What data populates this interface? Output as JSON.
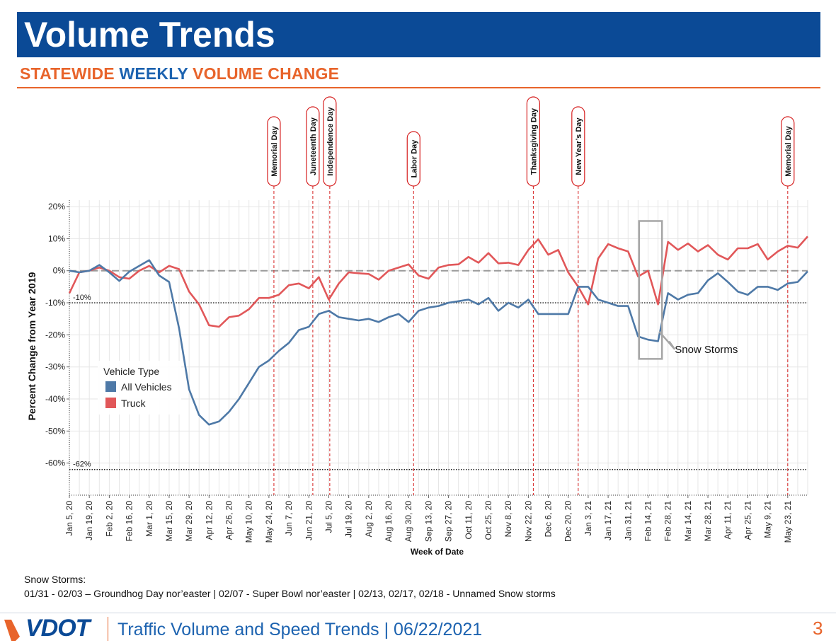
{
  "header": {
    "title": "Volume Trends",
    "subtitle_part1": "STATEWIDE ",
    "subtitle_part2": "WEEKLY",
    "subtitle_part3": " VOLUME CHANGE"
  },
  "colors": {
    "header_blue": "#0b4a96",
    "accent_orange": "#e8642b",
    "all_vehicles": "#4e79a7",
    "truck": "#e15759"
  },
  "chart_data": {
    "type": "line",
    "xlabel": "Week of Date",
    "ylabel": "Percent Change from Year 2019",
    "ylim": [
      -70,
      22
    ],
    "yticks": [
      20,
      10,
      0,
      -10,
      -20,
      -30,
      -40,
      -50,
      -60
    ],
    "ytick_labels": [
      "20%",
      "10%",
      "0%",
      "-10%",
      "-20%",
      "-30%",
      "-40%",
      "-50%",
      "-60%"
    ],
    "x_start": "Jan 5, 20",
    "x_tick_labels": [
      "Jan 5, 20",
      "Jan 19, 20",
      "Feb 2, 20",
      "Feb 16, 20",
      "Mar 1, 20",
      "Mar 15, 20",
      "Mar 29, 20",
      "Apr 12, 20",
      "Apr 26, 20",
      "May 10, 20",
      "May 24, 20",
      "Jun 7, 20",
      "Jun 21, 20",
      "Jul 5, 20",
      "Jul 19, 20",
      "Aug 2, 20",
      "Aug 16, 20",
      "Aug 30, 20",
      "Sep 13, 20",
      "Sep 27, 20",
      "Oct 11, 20",
      "Oct 25, 20",
      "Nov 8, 20",
      "Nov 22, 20",
      "Dec 6, 20",
      "Dec 20, 20",
      "Jan 3, 21",
      "Jan 17, 21",
      "Jan 31, 21",
      "Feb 14, 21",
      "Feb 28, 21",
      "Mar 14, 21",
      "Mar 28, 21",
      "Apr 11, 21",
      "Apr 25, 21",
      "May 9, 21",
      "May 23, 21"
    ],
    "grid": true,
    "legend": {
      "title": "Vehicle Type",
      "placement": "lower-left"
    },
    "series": [
      {
        "name": "All Vehicles",
        "color": "#4e79a7",
        "values": [
          0,
          -0.5,
          0,
          1.8,
          -0.5,
          -3.2,
          -0.3,
          1.5,
          3.3,
          -1.5,
          -3.5,
          -18,
          -37,
          -45,
          -48,
          -47,
          -44,
          -40,
          -35,
          -30,
          -28,
          -25,
          -22.5,
          -18.5,
          -17.5,
          -13.5,
          -12.5,
          -14.5,
          -15,
          -15.5,
          -15,
          -16,
          -14.5,
          -13.5,
          -16,
          -12.5,
          -11.5,
          -11,
          -10,
          -9.5,
          -9,
          -10.5,
          -8.5,
          -12.5,
          -10,
          -11.5,
          -9,
          -13.5,
          -13.5,
          -13.5,
          -13.5,
          -5,
          -5,
          -9,
          -10,
          -11,
          -11,
          -20.5,
          -21.5,
          -22,
          -7,
          -9,
          -7.5,
          -7,
          -3,
          -0.8,
          -3.5,
          -6.5,
          -7.5,
          -5,
          -5,
          -6,
          -4,
          -3.5,
          -0.2
        ]
      },
      {
        "name": "Truck",
        "color": "#e15759",
        "values": [
          -7,
          -0.5,
          0,
          1,
          0,
          -2,
          -2.5,
          0,
          1.5,
          -0.5,
          1.5,
          0.5,
          -6.5,
          -10.5,
          -17,
          -17.5,
          -14.5,
          -14,
          -12,
          -8.5,
          -8.5,
          -7.5,
          -4.5,
          -4,
          -5.5,
          -2,
          -9,
          -4,
          -0.5,
          -0.8,
          -1,
          -2.8,
          0,
          1,
          2,
          -1.5,
          -2.5,
          1,
          1.8,
          2,
          4.3,
          2.5,
          5.5,
          2.3,
          2.5,
          1.8,
          6.5,
          9.8,
          5,
          6.5,
          -0.5,
          -5,
          -10.5,
          3.8,
          8.3,
          7,
          6,
          -1.8,
          0,
          -10.5,
          9,
          6.5,
          8.5,
          6,
          8,
          5,
          3.5,
          7,
          7,
          8.3,
          3.5,
          6,
          7.8,
          7.2,
          10.7
        ]
      }
    ],
    "reference_lines": [
      {
        "value": 0,
        "style": "dashed",
        "label": ""
      },
      {
        "value": -10,
        "style": "dotted",
        "label": "-10%"
      },
      {
        "value": -62,
        "style": "dotted",
        "label": "-62%"
      }
    ],
    "holidays": [
      {
        "label": "Memorial Day",
        "week": 20.5
      },
      {
        "label": "Juneteenth Day",
        "week": 24.4
      },
      {
        "label": "Independence Day",
        "week": 26.1
      },
      {
        "label": "Labor Day",
        "week": 34.5
      },
      {
        "label": "Thanksgiving Day",
        "week": 46.5
      },
      {
        "label": "New Year’s Day",
        "week": 51.0
      },
      {
        "label": "Memorial Day",
        "week": 72.0
      }
    ],
    "annotation": {
      "label": "Snow Storms",
      "week_range": [
        57.1,
        59.4
      ],
      "value_range": [
        -27.5,
        15.5
      ]
    }
  },
  "notes": {
    "heading": "Snow Storms:",
    "body": "01/31 - 02/03 – Groundhog Day nor’easter | 02/07 - Super Bowl nor’easter | 02/13, 02/17, 02/18 - Unnamed Snow storms"
  },
  "footer": {
    "logo_text": "VDOT",
    "text": "Traffic Volume and Speed Trends | 06/22/2021",
    "page_number": "3"
  }
}
